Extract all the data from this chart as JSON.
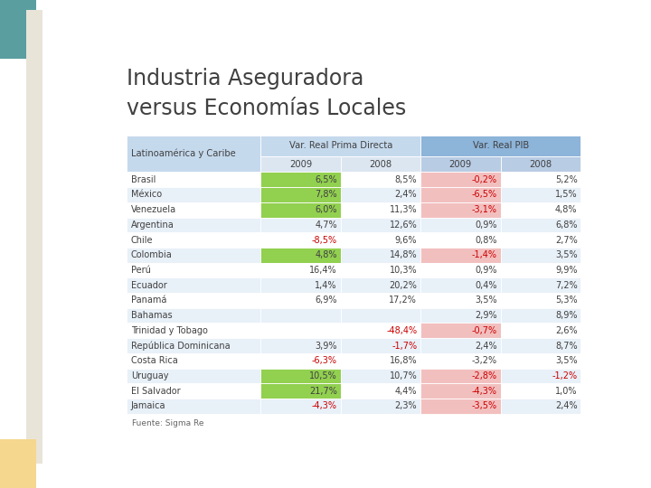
{
  "title_line1": "Industria Aseguradora",
  "title_line2": "versus Economías Locales",
  "header_col": "Latinoamérica y Caribe",
  "col_group1": "Var. Real Prima Directa",
  "col_group2": "Var. Real PIB",
  "col_sub": [
    "2009",
    "2008",
    "2009",
    "2008"
  ],
  "rows": [
    {
      "country": "Brasil",
      "v1": "6,5%",
      "v2": "8,5%",
      "v3": "-0,2%",
      "v4": "5,2%"
    },
    {
      "country": "México",
      "v1": "7,8%",
      "v2": "2,4%",
      "v3": "-6,5%",
      "v4": "1,5%"
    },
    {
      "country": "Venezuela",
      "v1": "6,0%",
      "v2": "11,3%",
      "v3": "-3,1%",
      "v4": "4,8%"
    },
    {
      "country": "Argentina",
      "v1": "4,7%",
      "v2": "12,6%",
      "v3": "0,9%",
      "v4": "6,8%"
    },
    {
      "country": "Chile",
      "v1": "-8,5%",
      "v2": "9,6%",
      "v3": "0,8%",
      "v4": "2,7%"
    },
    {
      "country": "Colombia",
      "v1": "4,8%",
      "v2": "14,8%",
      "v3": "-1,4%",
      "v4": "3,5%"
    },
    {
      "country": "Perú",
      "v1": "16,4%",
      "v2": "10,3%",
      "v3": "0,9%",
      "v4": "9,9%"
    },
    {
      "country": "Ecuador",
      "v1": "1,4%",
      "v2": "20,2%",
      "v3": "0,4%",
      "v4": "7,2%"
    },
    {
      "country": "Panamá",
      "v1": "6,9%",
      "v2": "17,2%",
      "v3": "3,5%",
      "v4": "5,3%"
    },
    {
      "country": "Bahamas",
      "v1": "",
      "v2": "",
      "v3": "2,9%",
      "v4": "8,9%"
    },
    {
      "country": "Trinidad y Tobago",
      "v1": "",
      "v2": "-48,4%",
      "v3": "-0,7%",
      "v4": "2,6%"
    },
    {
      "country": "República Dominicana",
      "v1": "3,9%",
      "v2": "-1,7%",
      "v3": "2,4%",
      "v4": "8,7%"
    },
    {
      "country": "Costa Rica",
      "v1": "-6,3%",
      "v2": "16,8%",
      "v3": "-3,2%",
      "v4": "3,5%"
    },
    {
      "country": "Uruguay",
      "v1": "10,5%",
      "v2": "10,7%",
      "v3": "-2,8%",
      "v4": "-1,2%"
    },
    {
      "country": "El Salvador",
      "v1": "21,7%",
      "v2": "4,4%",
      "v3": "-4,3%",
      "v4": "1,0%"
    },
    {
      "country": "Jamaica",
      "v1": "-4,3%",
      "v2": "2,3%",
      "v3": "-3,5%",
      "v4": "2,4%"
    }
  ],
  "green_bg_v1": [
    "Brasil",
    "México",
    "Venezuela",
    "Colombia",
    "Uruguay",
    "El Salvador"
  ],
  "red_bg_v3": [
    "Brasil",
    "México",
    "Venezuela",
    "Colombia",
    "Trinidad y Tobago",
    "Uruguay",
    "El Salvador",
    "Jamaica"
  ],
  "red_text_v1": [
    "Chile",
    "Costa Rica",
    "Jamaica"
  ],
  "red_text_v2": [
    "Trinidad y Tobago",
    "República Dominicana"
  ],
  "red_text_v3": [
    "Brasil",
    "México",
    "Venezuela",
    "Colombia",
    "Trinidad y Tobago",
    "Uruguay",
    "El Salvador",
    "Jamaica"
  ],
  "red_text_v4": [
    "Uruguay"
  ],
  "bg_color": "#ffffff",
  "table_header_bg": "#c5d9ed",
  "table_subheader_bg": "#dce6f1",
  "pib_header_bg": "#8db4d9",
  "pib_subheader_bg": "#b8cce4",
  "row_alt_bg": "#e8f0f8",
  "row_bg": "#ffffff",
  "green_color": "#92d050",
  "red_bg_color": "#f2bfbf",
  "red_text_color": "#cc0000",
  "footer": "Fuente: Sigma Re",
  "title_color": "#404040",
  "deco_teal": "#5a9ea0",
  "deco_yellow": "#f5d78e",
  "deco_beige": "#e8e4d8"
}
